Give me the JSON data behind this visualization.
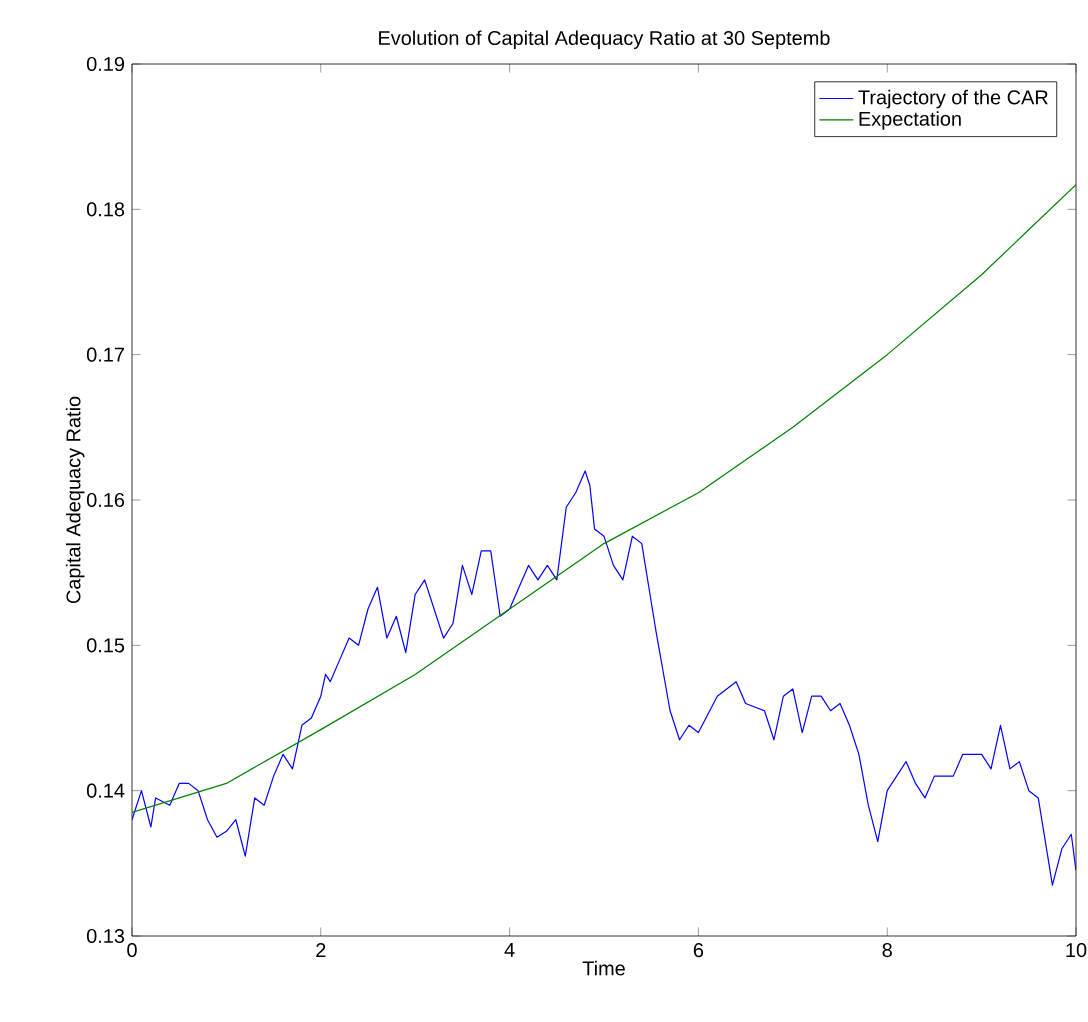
{
  "chart_data": {
    "type": "line",
    "title": "Evolution of Capital Adequacy Ratio at 30 Septemb",
    "xlabel": "Time",
    "ylabel": "Capital Adequacy Ratio",
    "xlim": [
      0,
      10
    ],
    "ylim": [
      0.13,
      0.19
    ],
    "xticks": [
      0,
      2,
      4,
      6,
      8,
      10
    ],
    "yticks": [
      0.13,
      0.14,
      0.15,
      0.16,
      0.17,
      0.18,
      0.19
    ],
    "grid": false,
    "legend": "top right",
    "marker": "none",
    "line_style": "solid",
    "series": [
      {
        "name": "Trajectory of the CAR",
        "color": "#0000ff",
        "x": [
          0,
          0.1,
          0.2,
          0.25,
          0.4,
          0.5,
          0.6,
          0.7,
          0.8,
          0.9,
          1.0,
          1.1,
          1.2,
          1.3,
          1.4,
          1.5,
          1.6,
          1.7,
          1.8,
          1.9,
          2.0,
          2.05,
          2.1,
          2.2,
          2.3,
          2.4,
          2.5,
          2.6,
          2.7,
          2.8,
          2.9,
          3.0,
          3.1,
          3.2,
          3.3,
          3.4,
          3.5,
          3.6,
          3.7,
          3.8,
          3.9,
          4.0,
          4.1,
          4.2,
          4.3,
          4.4,
          4.5,
          4.6,
          4.7,
          4.8,
          4.85,
          4.9,
          5.0,
          5.1,
          5.2,
          5.3,
          5.4,
          5.5,
          5.55,
          5.7,
          5.8,
          5.9,
          6.0,
          6.2,
          6.4,
          6.5,
          6.7,
          6.8,
          6.9,
          7.0,
          7.1,
          7.2,
          7.3,
          7.4,
          7.5,
          7.6,
          7.7,
          7.8,
          7.9,
          8.0,
          8.2,
          8.3,
          8.4,
          8.5,
          8.7,
          8.8,
          9.0,
          9.1,
          9.2,
          9.3,
          9.4,
          9.5,
          9.6,
          9.75,
          9.85,
          9.95,
          10.0
        ],
        "values": [
          0.138,
          0.14,
          0.1375,
          0.1395,
          0.139,
          0.1405,
          0.1405,
          0.14,
          0.138,
          0.1368,
          0.1372,
          0.138,
          0.1355,
          0.1395,
          0.139,
          0.141,
          0.1425,
          0.1415,
          0.1445,
          0.145,
          0.1465,
          0.148,
          0.1475,
          0.149,
          0.1505,
          0.15,
          0.1525,
          0.154,
          0.1505,
          0.152,
          0.1495,
          0.1535,
          0.1545,
          0.1525,
          0.1505,
          0.1515,
          0.1555,
          0.1535,
          0.1565,
          0.1565,
          0.152,
          0.1525,
          0.154,
          0.1555,
          0.1545,
          0.1555,
          0.1545,
          0.1595,
          0.1605,
          0.162,
          0.161,
          0.158,
          0.1575,
          0.1555,
          0.1545,
          0.1575,
          0.157,
          0.153,
          0.151,
          0.1455,
          0.1435,
          0.1445,
          0.144,
          0.1465,
          0.1475,
          0.146,
          0.1455,
          0.1435,
          0.1465,
          0.147,
          0.144,
          0.1465,
          0.1465,
          0.1455,
          0.146,
          0.1445,
          0.1425,
          0.139,
          0.1365,
          0.14,
          0.142,
          0.1405,
          0.1395,
          0.141,
          0.141,
          0.1425,
          0.1425,
          0.1415,
          0.1445,
          0.1415,
          0.142,
          0.14,
          0.1395,
          0.1335,
          0.136,
          0.137,
          0.1345
        ]
      },
      {
        "name": "Expectation",
        "color": "#008000",
        "x": [
          0,
          1,
          2,
          3,
          4,
          5,
          6,
          7,
          8,
          9,
          10
        ],
        "values": [
          0.1385,
          0.1405,
          0.1442,
          0.148,
          0.1525,
          0.157,
          0.1605,
          0.165,
          0.17,
          0.1755,
          0.1817
        ]
      }
    ]
  }
}
